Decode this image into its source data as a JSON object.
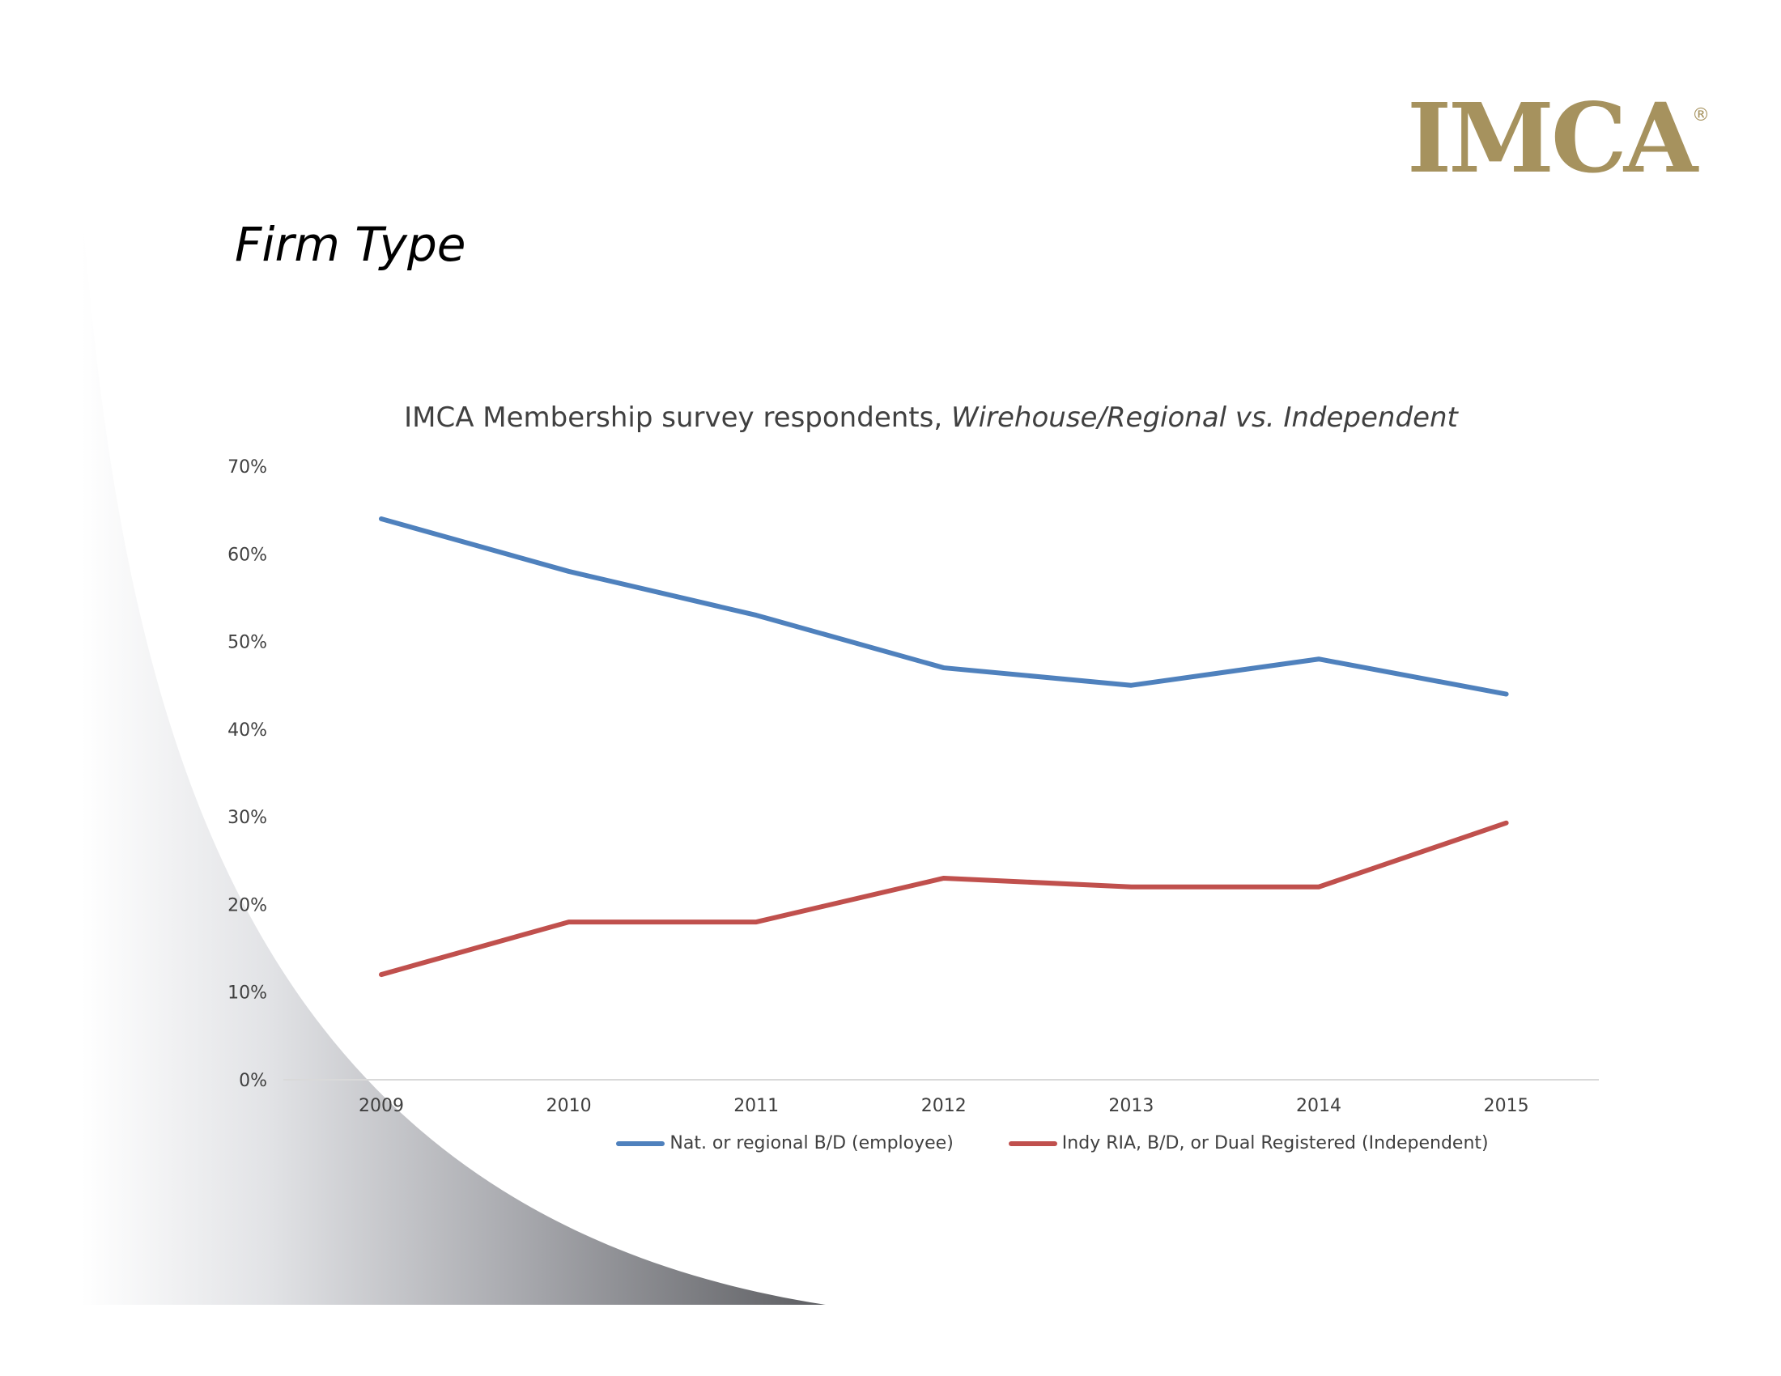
{
  "slide": {
    "title": "Firm Type",
    "logo_text": "IMCA",
    "logo_reg": "®"
  },
  "colors": {
    "logo": "#a6925e",
    "series_employee": "#4f81bd",
    "series_independent": "#c0504d",
    "axis_text": "#404040"
  },
  "chart_data": {
    "type": "line",
    "title_plain": "IMCA Membership survey respondents, ",
    "title_italic": "Wirehouse/Regional vs. Independent",
    "categories": [
      "2009",
      "2010",
      "2011",
      "2012",
      "2013",
      "2014",
      "2015"
    ],
    "ylim": [
      0,
      70
    ],
    "yticks": [
      "0%",
      "10%",
      "20%",
      "30%",
      "40%",
      "50%",
      "60%",
      "70%"
    ],
    "grid": false,
    "legend_position": "bottom",
    "series": [
      {
        "name": "Nat. or regional B/D (employee)",
        "values": [
          64,
          58,
          53,
          47,
          45,
          48,
          44
        ]
      },
      {
        "name": "Indy RIA, B/D, or Dual Registered (Independent)",
        "values": [
          12,
          18,
          18,
          23,
          22,
          22,
          29.3
        ]
      }
    ]
  }
}
